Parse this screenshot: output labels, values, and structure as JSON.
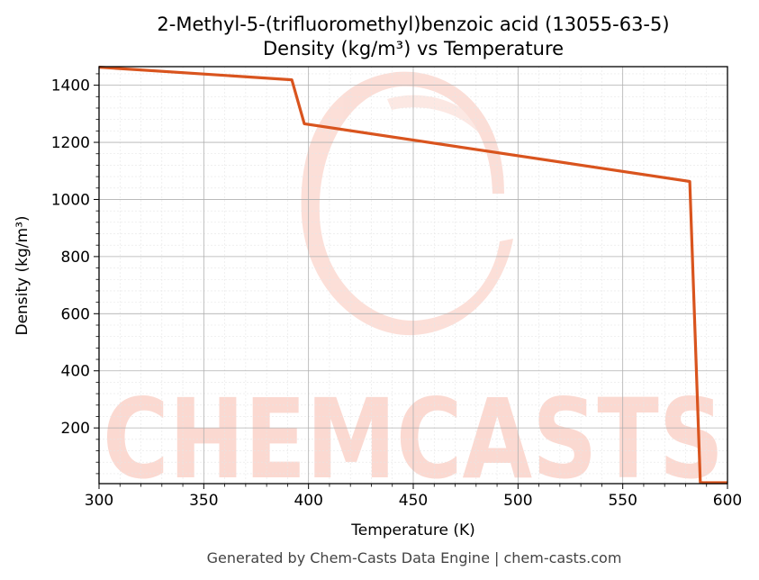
{
  "chart_data": {
    "type": "line",
    "title_line1": "2-Methyl-5-(trifluoromethyl)benzoic acid (13055-63-5)",
    "title_line2": "Density (kg/m³) vs Temperature",
    "xlabel": "Temperature (K)",
    "ylabel": "Density (kg/m³)",
    "xlim": [
      300,
      600
    ],
    "ylim": [
      5,
      1465
    ],
    "xticks": [
      300,
      350,
      400,
      450,
      500,
      550,
      600
    ],
    "yticks": [
      200,
      400,
      600,
      800,
      1000,
      1200,
      1400
    ],
    "grid": true,
    "line_color": "#d9541e",
    "series": [
      {
        "x": [
          300,
          392,
          398,
          582,
          587,
          588,
          600
        ],
        "y": [
          1463,
          1419,
          1265,
          1063,
          10,
          8,
          8
        ]
      }
    ]
  },
  "footer": "Generated by Chem-Casts Data Engine | chem-casts.com",
  "watermark": "CHEMCASTS"
}
